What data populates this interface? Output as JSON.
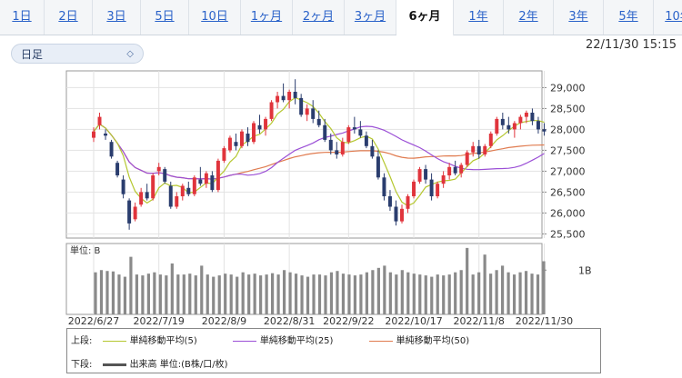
{
  "tabs": [
    {
      "label": "1日"
    },
    {
      "label": "2日"
    },
    {
      "label": "3日"
    },
    {
      "label": "5日"
    },
    {
      "label": "10日"
    },
    {
      "label": "1ヶ月"
    },
    {
      "label": "2ヶ月"
    },
    {
      "label": "3ヶ月"
    },
    {
      "label": "6ヶ月",
      "active": true
    },
    {
      "label": "1年"
    },
    {
      "label": "2年"
    },
    {
      "label": "3年"
    },
    {
      "label": "5年"
    },
    {
      "label": "10年"
    }
  ],
  "period_select": {
    "value": "日足"
  },
  "timestamp": "22/11/30 15:15",
  "colors": {
    "up": "#e0343c",
    "down": "#2a3d6e",
    "ma5": "#b5c72f",
    "ma25": "#9b4fd6",
    "ma50": "#e07b4f",
    "volume": "#8a8a8a"
  },
  "legend": {
    "upper_label": "上段:",
    "lower_label": "下段:",
    "ma5": "単純移動平均(5)",
    "ma25": "単純移動平均(25)",
    "ma50": "単純移動平均(50)",
    "volume": "出来高 単位:(B株/口/枚)"
  },
  "chart_data": [
    {
      "type": "candlestick",
      "y_ticks": [
        "29,000",
        "28,500",
        "28,000",
        "27,500",
        "27,000",
        "26,500",
        "26,000",
        "25,500"
      ],
      "ylim": [
        25400,
        29400
      ],
      "x_tick_labels": [
        "2022/6/27",
        "2022/7/19",
        "2022/8/9",
        "2022/8/31",
        "2022/9/22",
        "2022/10/17",
        "2022/11/8",
        "2022/11/30"
      ],
      "candles": [
        {
          "o": 27800,
          "h": 28050,
          "l": 27700,
          "c": 27950
        },
        {
          "o": 28100,
          "h": 28400,
          "l": 28000,
          "c": 28300
        },
        {
          "o": 27900,
          "h": 28000,
          "l": 27750,
          "c": 27850
        },
        {
          "o": 27700,
          "h": 27750,
          "l": 27300,
          "c": 27350
        },
        {
          "o": 27200,
          "h": 27250,
          "l": 26850,
          "c": 26900
        },
        {
          "o": 26800,
          "h": 26900,
          "l": 26350,
          "c": 26450
        },
        {
          "o": 26300,
          "h": 26350,
          "l": 25600,
          "c": 25750
        },
        {
          "o": 25850,
          "h": 26250,
          "l": 25800,
          "c": 26150
        },
        {
          "o": 26200,
          "h": 26600,
          "l": 26150,
          "c": 26500
        },
        {
          "o": 26500,
          "h": 26700,
          "l": 26300,
          "c": 26350
        },
        {
          "o": 26350,
          "h": 26950,
          "l": 26300,
          "c": 26900
        },
        {
          "o": 27000,
          "h": 27200,
          "l": 26900,
          "c": 27100
        },
        {
          "o": 27050,
          "h": 27100,
          "l": 26700,
          "c": 26750
        },
        {
          "o": 26650,
          "h": 26750,
          "l": 26100,
          "c": 26150
        },
        {
          "o": 26150,
          "h": 26500,
          "l": 26100,
          "c": 26400
        },
        {
          "o": 26400,
          "h": 26700,
          "l": 26300,
          "c": 26650
        },
        {
          "o": 26600,
          "h": 26750,
          "l": 26400,
          "c": 26450
        },
        {
          "o": 26450,
          "h": 26900,
          "l": 26400,
          "c": 26850
        },
        {
          "o": 26800,
          "h": 27100,
          "l": 26650,
          "c": 26700
        },
        {
          "o": 26700,
          "h": 27000,
          "l": 26600,
          "c": 26950
        },
        {
          "o": 26900,
          "h": 27000,
          "l": 26500,
          "c": 26550
        },
        {
          "o": 26550,
          "h": 27300,
          "l": 26500,
          "c": 27250
        },
        {
          "o": 27250,
          "h": 27600,
          "l": 27200,
          "c": 27550
        },
        {
          "o": 27500,
          "h": 27850,
          "l": 27450,
          "c": 27800
        },
        {
          "o": 27700,
          "h": 27900,
          "l": 27500,
          "c": 27600
        },
        {
          "o": 27600,
          "h": 28000,
          "l": 27550,
          "c": 27950
        },
        {
          "o": 27900,
          "h": 28050,
          "l": 27600,
          "c": 27700
        },
        {
          "o": 27700,
          "h": 28200,
          "l": 27650,
          "c": 28150
        },
        {
          "o": 28100,
          "h": 28350,
          "l": 27900,
          "c": 28000
        },
        {
          "o": 28000,
          "h": 28300,
          "l": 27850,
          "c": 28250
        },
        {
          "o": 28250,
          "h": 28700,
          "l": 28200,
          "c": 28650
        },
        {
          "o": 28650,
          "h": 28900,
          "l": 28500,
          "c": 28800
        },
        {
          "o": 28800,
          "h": 29100,
          "l": 28650,
          "c": 28700
        },
        {
          "o": 28700,
          "h": 28950,
          "l": 28500,
          "c": 28900
        },
        {
          "o": 28900,
          "h": 29200,
          "l": 28600,
          "c": 28750
        },
        {
          "o": 28750,
          "h": 28850,
          "l": 28300,
          "c": 28350
        },
        {
          "o": 28350,
          "h": 28600,
          "l": 28200,
          "c": 28500
        },
        {
          "o": 28500,
          "h": 28700,
          "l": 28150,
          "c": 28250
        },
        {
          "o": 28250,
          "h": 28450,
          "l": 28050,
          "c": 28100
        },
        {
          "o": 28100,
          "h": 28250,
          "l": 27700,
          "c": 27750
        },
        {
          "o": 27750,
          "h": 27900,
          "l": 27400,
          "c": 27500
        },
        {
          "o": 27500,
          "h": 27700,
          "l": 27300,
          "c": 27400
        },
        {
          "o": 27400,
          "h": 27800,
          "l": 27350,
          "c": 27700
        },
        {
          "o": 27700,
          "h": 28100,
          "l": 27650,
          "c": 28050
        },
        {
          "o": 28050,
          "h": 28300,
          "l": 27900,
          "c": 28000
        },
        {
          "o": 28000,
          "h": 28200,
          "l": 27800,
          "c": 27850
        },
        {
          "o": 27850,
          "h": 27950,
          "l": 27550,
          "c": 27600
        },
        {
          "o": 27600,
          "h": 27750,
          "l": 27300,
          "c": 27350
        },
        {
          "o": 27350,
          "h": 27500,
          "l": 26800,
          "c": 26850
        },
        {
          "o": 26850,
          "h": 26950,
          "l": 26300,
          "c": 26400
        },
        {
          "o": 26400,
          "h": 26550,
          "l": 26050,
          "c": 26150
        },
        {
          "o": 26150,
          "h": 26300,
          "l": 25700,
          "c": 25800
        },
        {
          "o": 25800,
          "h": 26200,
          "l": 25750,
          "c": 26100
        },
        {
          "o": 26100,
          "h": 26450,
          "l": 26000,
          "c": 26400
        },
        {
          "o": 26400,
          "h": 26800,
          "l": 26350,
          "c": 26750
        },
        {
          "o": 26750,
          "h": 27100,
          "l": 26700,
          "c": 27050
        },
        {
          "o": 27050,
          "h": 27150,
          "l": 26700,
          "c": 26800
        },
        {
          "o": 26800,
          "h": 26950,
          "l": 26300,
          "c": 26400
        },
        {
          "o": 26400,
          "h": 26750,
          "l": 26350,
          "c": 26700
        },
        {
          "o": 26700,
          "h": 27000,
          "l": 26600,
          "c": 26900
        },
        {
          "o": 26900,
          "h": 27200,
          "l": 26800,
          "c": 27100
        },
        {
          "o": 27100,
          "h": 27250,
          "l": 26900,
          "c": 26950
        },
        {
          "o": 26950,
          "h": 27200,
          "l": 26850,
          "c": 27150
        },
        {
          "o": 27150,
          "h": 27500,
          "l": 27100,
          "c": 27450
        },
        {
          "o": 27450,
          "h": 27700,
          "l": 27350,
          "c": 27600
        },
        {
          "o": 27600,
          "h": 27750,
          "l": 27300,
          "c": 27400
        },
        {
          "o": 27400,
          "h": 27650,
          "l": 27350,
          "c": 27600
        },
        {
          "o": 27600,
          "h": 27950,
          "l": 27550,
          "c": 27900
        },
        {
          "o": 27900,
          "h": 28300,
          "l": 27850,
          "c": 28250
        },
        {
          "o": 28250,
          "h": 28400,
          "l": 28000,
          "c": 28100
        },
        {
          "o": 28100,
          "h": 28300,
          "l": 27900,
          "c": 28000
        },
        {
          "o": 28000,
          "h": 28200,
          "l": 27800,
          "c": 28150
        },
        {
          "o": 28150,
          "h": 28350,
          "l": 28000,
          "c": 28300
        },
        {
          "o": 28300,
          "h": 28450,
          "l": 28150,
          "c": 28400
        },
        {
          "o": 28400,
          "h": 28500,
          "l": 28100,
          "c": 28200
        },
        {
          "o": 28200,
          "h": 28300,
          "l": 27900,
          "c": 28000
        },
        {
          "o": 28000,
          "h": 28150,
          "l": 27850,
          "c": 27950
        }
      ]
    },
    {
      "type": "bar",
      "y_axis_label": "単位: B",
      "y_ticks": [
        "1B"
      ],
      "ylim": [
        0,
        1.6
      ],
      "values": [
        0.95,
        1.0,
        0.98,
        0.97,
        0.9,
        0.85,
        1.3,
        0.9,
        0.88,
        0.92,
        0.95,
        0.9,
        0.88,
        1.15,
        0.9,
        0.9,
        0.92,
        0.88,
        1.1,
        0.9,
        0.85,
        0.88,
        0.92,
        0.9,
        0.85,
        0.95,
        0.9,
        0.92,
        0.88,
        0.9,
        0.93,
        0.9,
        1.0,
        0.95,
        0.92,
        0.88,
        0.85,
        0.9,
        0.9,
        0.88,
        0.95,
        0.98,
        0.92,
        0.9,
        0.88,
        0.9,
        0.95,
        1.0,
        1.05,
        1.1,
        0.95,
        0.9,
        1.0,
        0.95,
        0.92,
        0.9,
        0.88,
        0.85,
        0.9,
        0.88,
        0.9,
        0.95,
        1.0,
        1.5,
        0.9,
        0.95,
        1.35,
        0.92,
        1.0,
        1.1,
        0.95,
        0.9,
        0.95,
        0.98,
        0.92,
        0.9,
        1.2
      ]
    }
  ]
}
